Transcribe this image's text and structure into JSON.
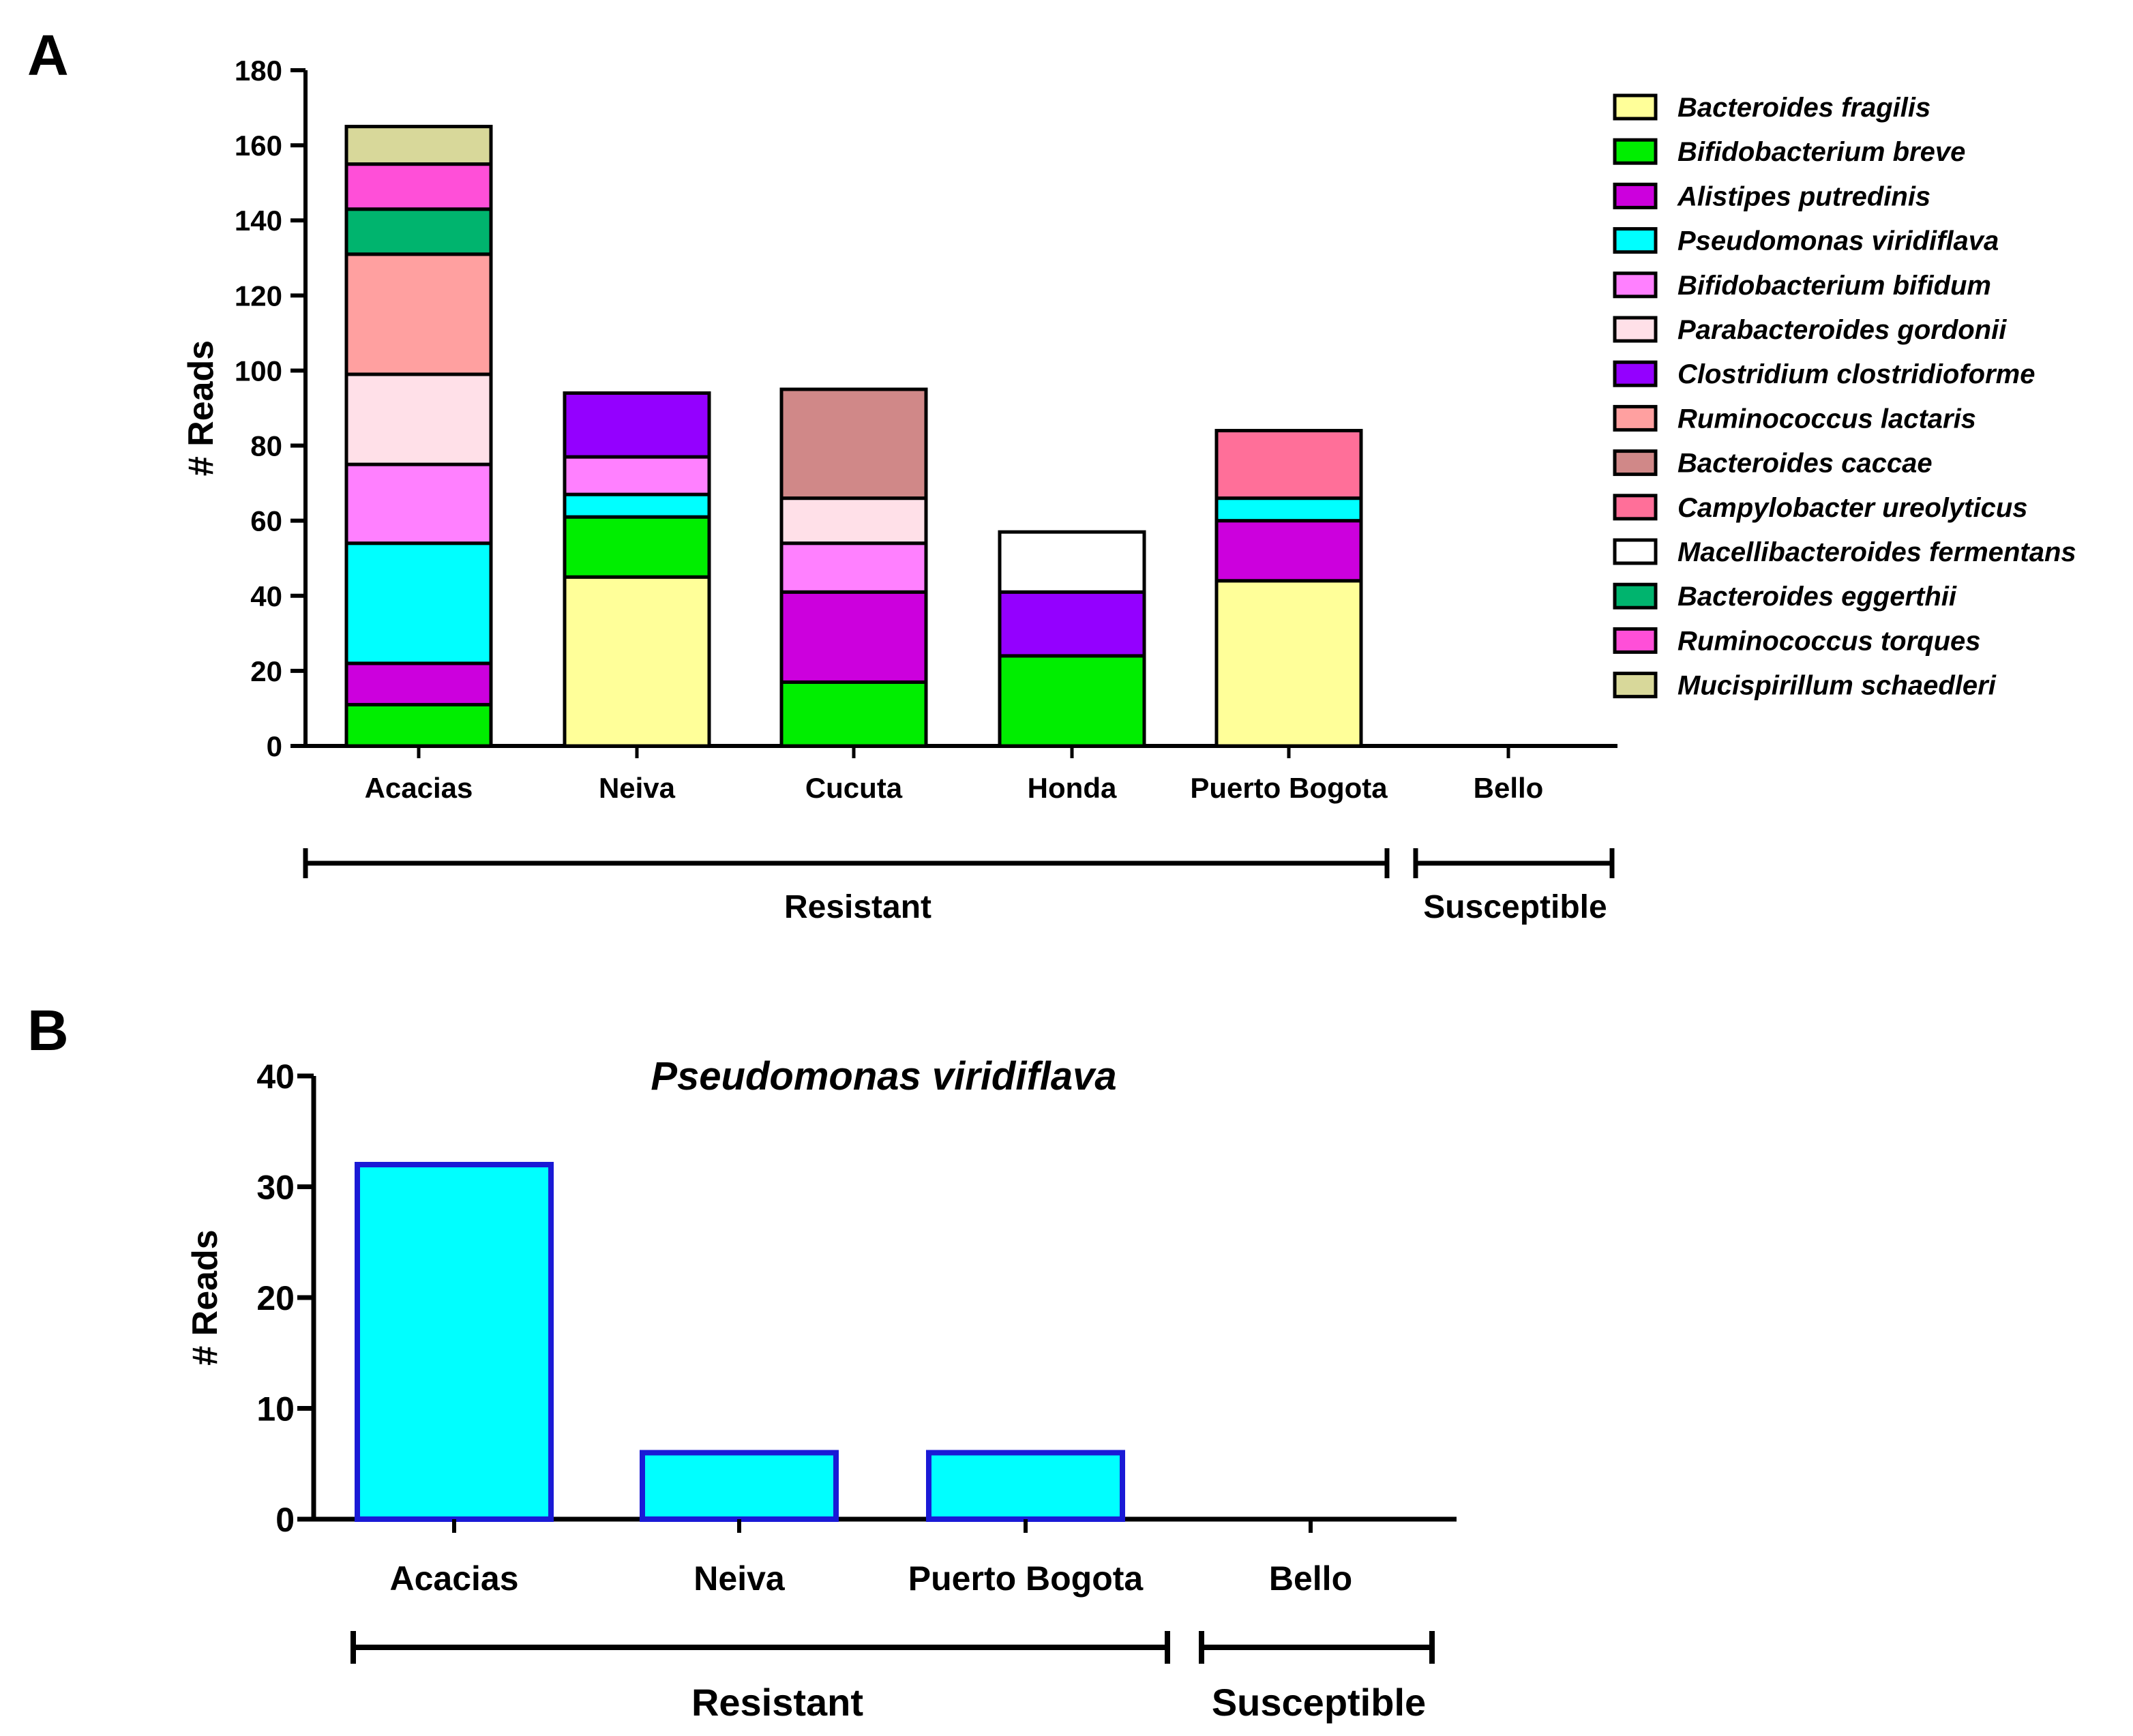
{
  "panels": {
    "a_letter": "A",
    "b_letter": "B"
  },
  "chart_data": [
    {
      "type": "bar",
      "stacked": true,
      "panel": "A",
      "title": "",
      "xlabel": "",
      "ylabel": "# Reads",
      "ylim": [
        0,
        180
      ],
      "yticks": [
        "0",
        "20",
        "40",
        "60",
        "80",
        "100",
        "120",
        "140",
        "160",
        "180"
      ],
      "categories": [
        "Acacias",
        "Neiva",
        "Cucuta",
        "Honda",
        "Puerto Bogota",
        "Bello"
      ],
      "groups": [
        {
          "label": "Resistant",
          "from": 0,
          "to": 4
        },
        {
          "label": "Susceptible",
          "from": 5,
          "to": 5
        }
      ],
      "legend_position": "right",
      "series": [
        {
          "name": "Bacteroides fragilis",
          "color": "#FFFF99",
          "values": [
            0,
            45,
            0,
            0,
            44,
            0
          ]
        },
        {
          "name": "Bifidobacterium breve",
          "color": "#00EE00",
          "values": [
            11,
            16,
            17,
            24,
            0,
            0
          ]
        },
        {
          "name": "Alistipes putredinis",
          "color": "#CC00DD",
          "values": [
            11,
            0,
            24,
            0,
            16,
            0
          ]
        },
        {
          "name": "Pseudomonas viridiflava",
          "color": "#00FFFF",
          "values": [
            32,
            6,
            0,
            0,
            6,
            0
          ]
        },
        {
          "name": "Bifidobacterium bifidum",
          "color": "#FF80FF",
          "values": [
            21,
            10,
            13,
            0,
            0,
            0
          ]
        },
        {
          "name": "Parabacteroides gordonii",
          "color": "#FFE0E8",
          "values": [
            24,
            0,
            12,
            0,
            0,
            0
          ]
        },
        {
          "name": "Clostridium clostridioforme",
          "color": "#9400FF",
          "values": [
            0,
            17,
            0,
            17,
            0,
            0
          ]
        },
        {
          "name": "Ruminococcus lactaris",
          "color": "#FFA0A0",
          "values": [
            32,
            0,
            0,
            0,
            0,
            0
          ]
        },
        {
          "name": "Bacteroides caccae",
          "color": "#D08888",
          "values": [
            0,
            0,
            29,
            0,
            0,
            0
          ]
        },
        {
          "name": "Campylobacter ureolyticus",
          "color": "#FF6F99",
          "values": [
            0,
            0,
            0,
            0,
            18,
            0
          ]
        },
        {
          "name": "Macellibacteroides fermentans",
          "color": "#FFFFFF",
          "values": [
            0,
            0,
            0,
            16,
            0,
            0
          ]
        },
        {
          "name": "Bacteroides eggerthii",
          "color": "#00B46E",
          "values": [
            12,
            0,
            0,
            0,
            0,
            0
          ]
        },
        {
          "name": "Ruminococcus torques",
          "color": "#FF4FD8",
          "values": [
            12,
            0,
            0,
            0,
            0,
            0
          ]
        },
        {
          "name": "Mucispirillum schaedleri",
          "color": "#D8D89A",
          "values": [
            10,
            0,
            0,
            0,
            0,
            0
          ]
        }
      ]
    },
    {
      "type": "bar",
      "panel": "B",
      "title": "Pseudomonas viridiflava",
      "xlabel": "",
      "ylabel": "# Reads",
      "ylim": [
        0,
        40
      ],
      "yticks": [
        "0",
        "10",
        "20",
        "30",
        "40"
      ],
      "categories": [
        "Acacias",
        "Neiva",
        "Puerto Bogota",
        "Bello"
      ],
      "values": [
        32,
        6,
        6,
        0
      ],
      "fill": "#00FFFF",
      "edge": "#1A1AD6",
      "groups": [
        {
          "label": "Resistant",
          "from": 0,
          "to": 2
        },
        {
          "label": "Susceptible",
          "from": 3,
          "to": 3
        }
      ]
    }
  ]
}
